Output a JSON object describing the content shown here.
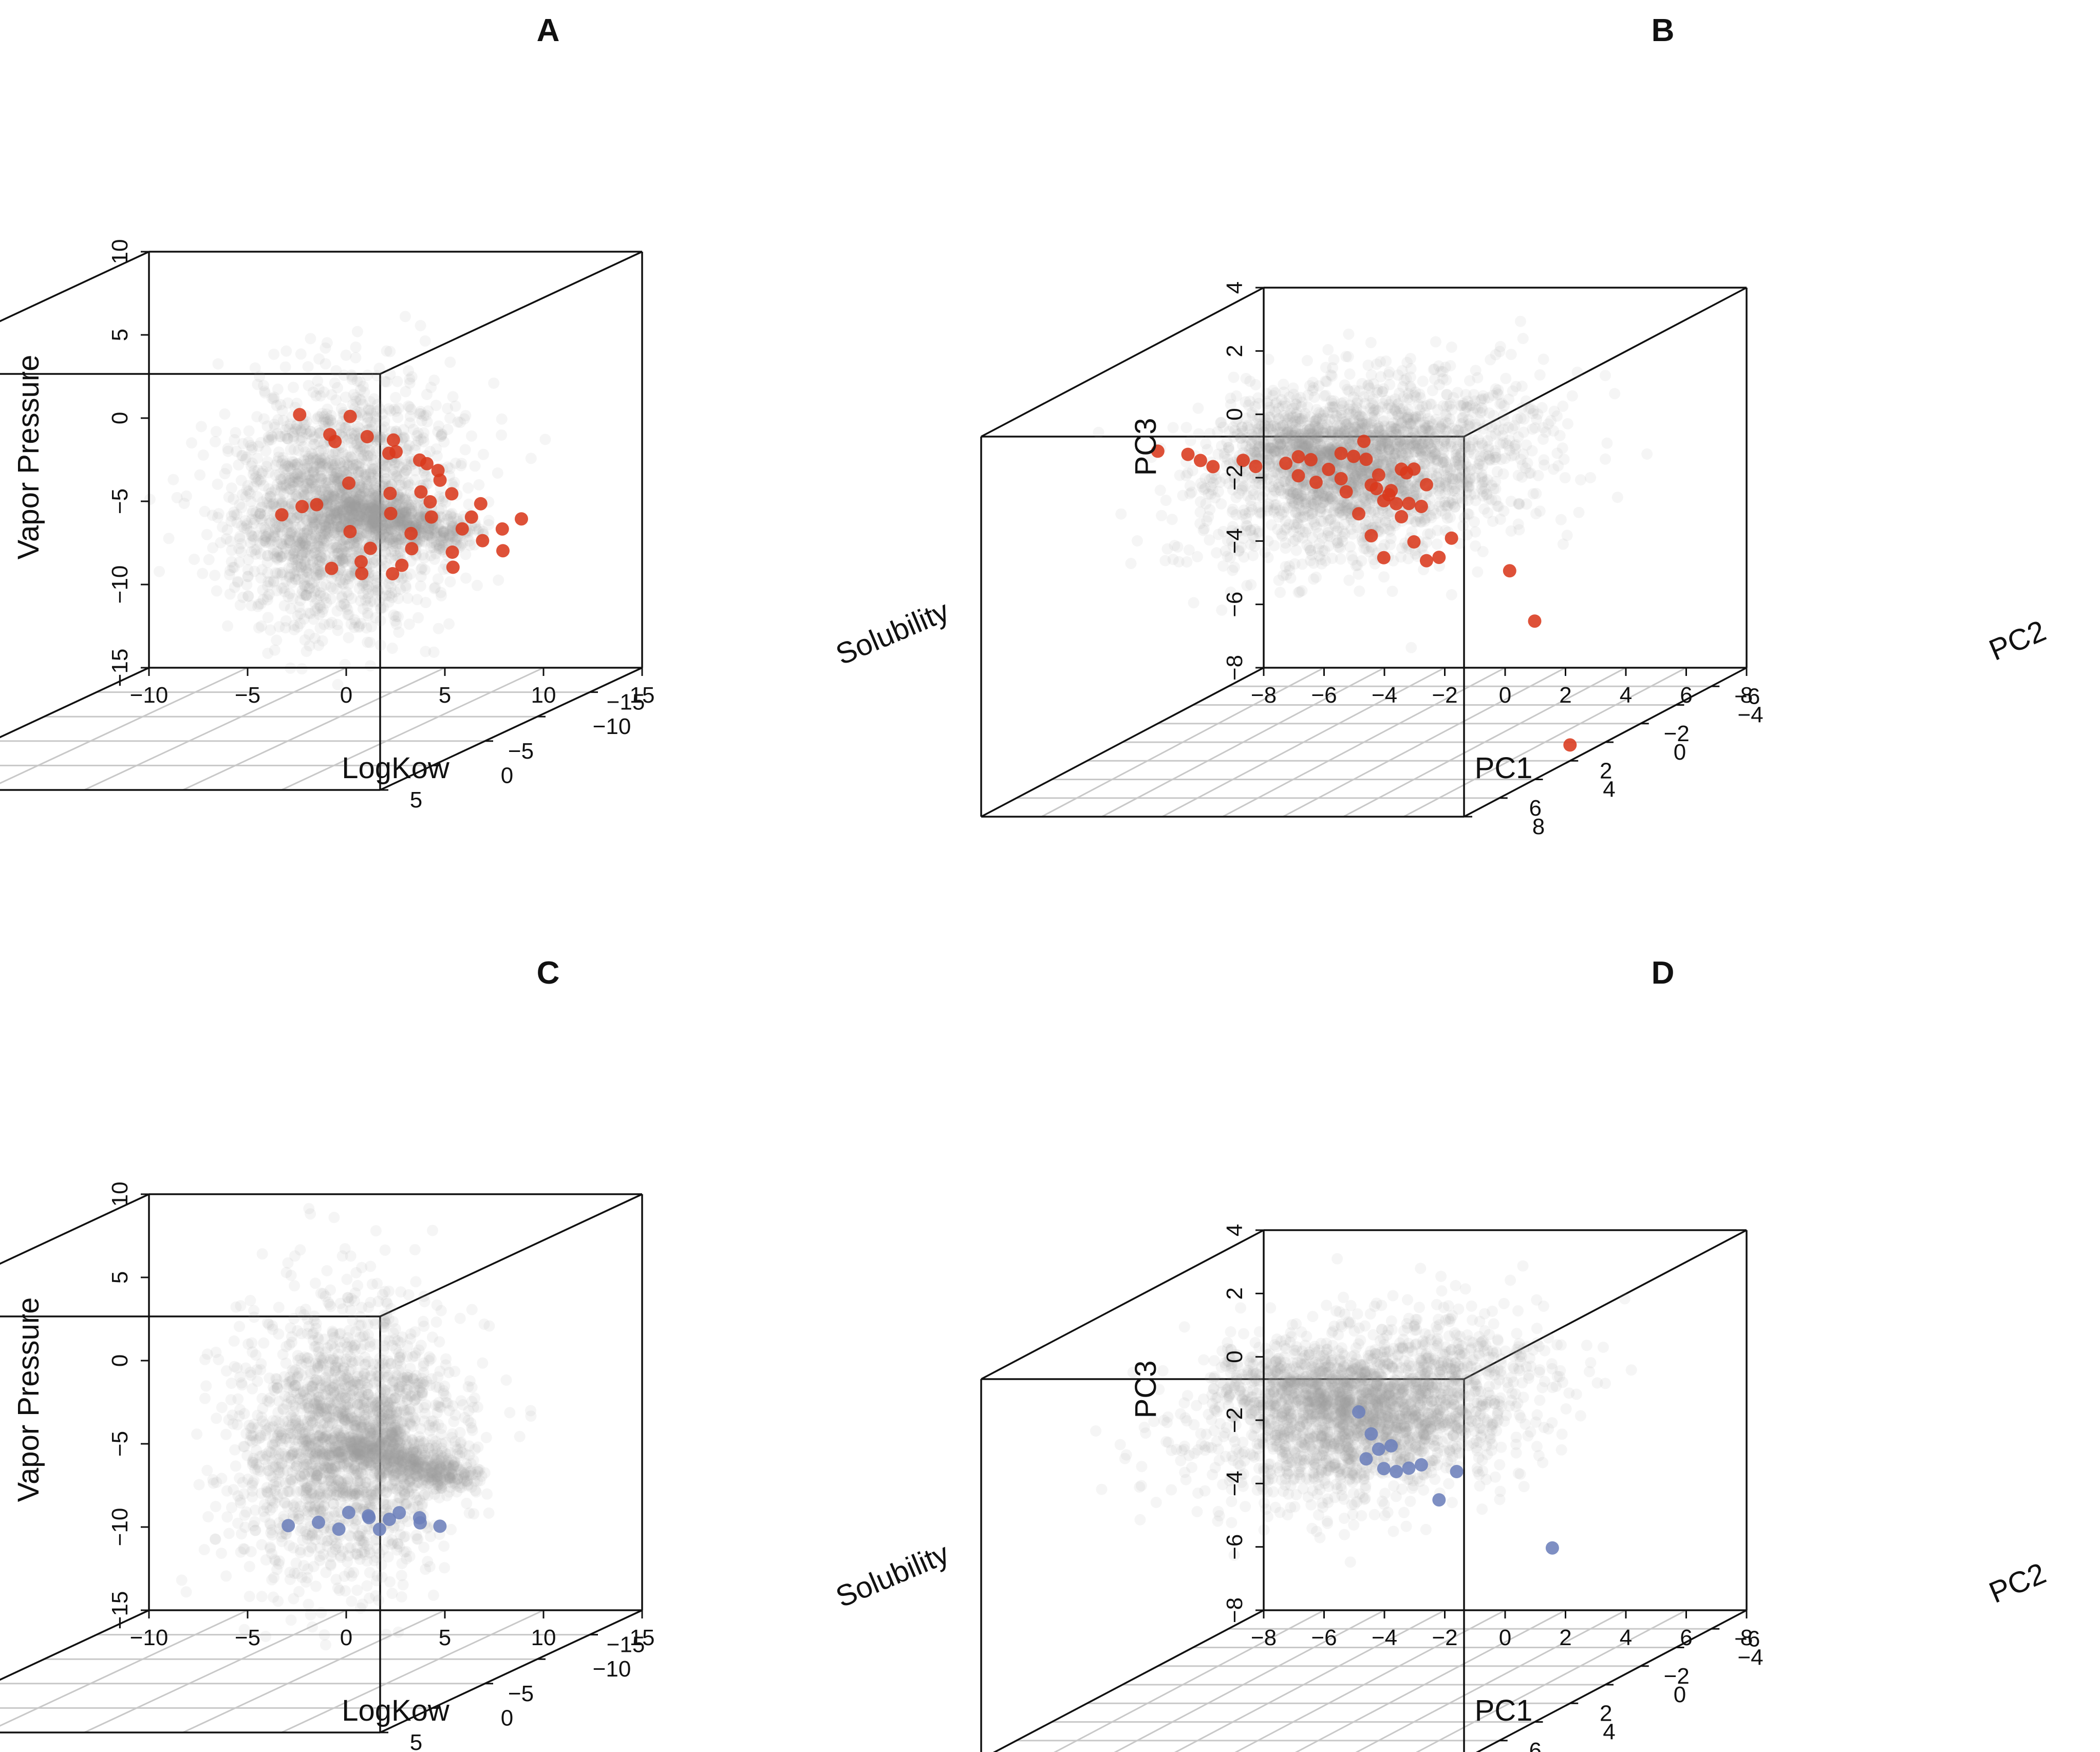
{
  "figure": {
    "background": "#ffffff"
  },
  "colors": {
    "red": "#d9391c",
    "blue": "#6c7fbb",
    "cloud": "#9c9c9c",
    "grid": "#c8c8c8",
    "box": "#111111"
  },
  "chart_data": [
    {
      "id": "A",
      "type": "scatter3d",
      "title": "A",
      "xlabel": "LogKow",
      "ylabel": "Solubility",
      "zlabel": "Vapor Pressure",
      "xlim": [
        -10,
        15
      ],
      "ylim": [
        -20,
        5
      ],
      "zlim": [
        -15,
        10
      ],
      "xticks": [
        -10,
        -5,
        0,
        5,
        10,
        15
      ],
      "yticks": [
        -15,
        -10,
        -5,
        0,
        5
      ],
      "zticks": [
        -15,
        -10,
        -5,
        0,
        5,
        10
      ],
      "xtick_labels": [
        "−10",
        "−5",
        "0",
        "5",
        "10",
        "15"
      ],
      "ytick_labels": [
        "−15",
        "−10",
        "−5",
        "0",
        "5"
      ],
      "ztick_labels": [
        "−15",
        "−10",
        "−5",
        "0",
        "5",
        "10"
      ],
      "background_cloud": {
        "label": "all chemicals (grey density)",
        "center": [
          6.5,
          -7,
          -1.5
        ],
        "spread": [
          2.5,
          2.5,
          3.5
        ],
        "tail": [
          13,
          -6,
          -3
        ]
      },
      "series": [
        {
          "name": "highlighted chemicals",
          "color": "#d9391c",
          "points": [
            [
              7.2,
              -2,
              5.5
            ],
            [
              8.2,
              -3,
              4
            ],
            [
              8.5,
              -6,
              3
            ],
            [
              9.3,
              -7,
              2.5
            ],
            [
              8.9,
              -8,
              1.5
            ],
            [
              8.1,
              -5,
              0.5
            ],
            [
              7,
              -4,
              -0.5
            ],
            [
              8.6,
              -8,
              -1
            ],
            [
              9.1,
              -10,
              -1.5
            ],
            [
              10.1,
              -9,
              -1.8
            ],
            [
              9.6,
              -12,
              -2.2
            ],
            [
              8.1,
              -9,
              -2.5
            ],
            [
              7.1,
              -7,
              -3
            ],
            [
              9.1,
              -11,
              -3.3
            ],
            [
              10.6,
              -12,
              -3.6
            ],
            [
              8.6,
              -10,
              -4
            ],
            [
              7.6,
              -8,
              -4.3
            ],
            [
              9.6,
              -13,
              -4.6
            ],
            [
              11.1,
              -14,
              -4.9
            ],
            [
              8.1,
              -11,
              -5.2
            ],
            [
              6.6,
              -9,
              -5.4
            ],
            [
              10.1,
              -14,
              -5.6
            ],
            [
              9.1,
              -13,
              -6
            ],
            [
              7.6,
              -11,
              -6.2
            ],
            [
              6.1,
              -10,
              -6.4
            ],
            [
              5.1,
              -9,
              -5.8
            ],
            [
              6.6,
              -12,
              -7
            ],
            [
              8.6,
              -14,
              -7.2
            ],
            [
              10.6,
              -15,
              -6.5
            ],
            [
              12.6,
              -13,
              -4
            ],
            [
              11.6,
              -11,
              -2.5
            ],
            [
              10.6,
              -9,
              -0.5
            ],
            [
              5.2,
              -6,
              -1.2
            ],
            [
              4.7,
              -5,
              -1.4
            ],
            [
              9.6,
              -6,
              2
            ],
            [
              10.1,
              -8,
              1
            ],
            [
              8.7,
              -4,
              4.8
            ],
            [
              7.4,
              -5,
              3
            ],
            [
              9.4,
              -10,
              0.2
            ],
            [
              8.9,
              -12,
              -0.8
            ]
          ]
        }
      ]
    },
    {
      "id": "B",
      "type": "scatter3d",
      "title": "B",
      "xlabel": "PC1",
      "ylabel": "PC2",
      "zlabel": "PC3",
      "xlim": [
        -8,
        8
      ],
      "ylim": [
        -8,
        8
      ],
      "zlim": [
        -8,
        4
      ],
      "xticks": [
        -8,
        -6,
        -4,
        -2,
        0,
        2,
        4,
        6,
        8
      ],
      "yticks": [
        -6,
        -4,
        -2,
        0,
        2,
        4,
        6,
        8
      ],
      "zticks": [
        -8,
        -6,
        -4,
        -2,
        0,
        2,
        4
      ],
      "xtick_labels": [
        "−8",
        "−6",
        "−4",
        "−2",
        "0",
        "2",
        "4",
        "6",
        "8"
      ],
      "ytick_labels": [
        "−6",
        "−4",
        "−2",
        "0",
        "2",
        "4",
        "6",
        "8"
      ],
      "ztick_labels": [
        "−8",
        "−6",
        "−4",
        "−2",
        "0",
        "2",
        "4"
      ],
      "background_cloud": {
        "label": "all chemicals (grey density)",
        "center": [
          2,
          3,
          1.5
        ],
        "spread": [
          2.2,
          2.5,
          1.2
        ],
        "tail": [
          -6,
          -4,
          0.8
        ]
      },
      "series": [
        {
          "name": "highlighted chemicals",
          "color": "#d9391c",
          "points": [
            [
              -8,
              -2,
              0.6
            ],
            [
              -7,
              -2,
              0.5
            ],
            [
              -6,
              -1,
              0.6
            ],
            [
              -5,
              0,
              0.7
            ],
            [
              -4,
              0,
              0.9
            ],
            [
              -3,
              1,
              1
            ],
            [
              -2,
              1,
              1.1
            ],
            [
              -1,
              2,
              1
            ],
            [
              0,
              2,
              1.2
            ],
            [
              1,
              3,
              1.2
            ],
            [
              2,
              3,
              1
            ],
            [
              3,
              4,
              0.8
            ],
            [
              4,
              5,
              1
            ],
            [
              5,
              6,
              1.3
            ],
            [
              5,
              5,
              1.6
            ],
            [
              4,
              4,
              1.8
            ],
            [
              3,
              3,
              1.5
            ],
            [
              2,
              2,
              0.4
            ],
            [
              3,
              3,
              0
            ],
            [
              4,
              4,
              -0.5
            ],
            [
              5,
              5,
              -0.8
            ],
            [
              3,
              4,
              -1
            ],
            [
              2,
              3,
              -0.6
            ],
            [
              1,
              2,
              -0.2
            ],
            [
              0,
              1,
              0.2
            ],
            [
              -1,
              1,
              0.5
            ],
            [
              6,
              7,
              1.5
            ],
            [
              7,
              7,
              0.5
            ],
            [
              6,
              6,
              -0.4
            ],
            [
              5,
              7,
              2
            ],
            [
              4,
              6,
              2.2
            ],
            [
              3,
              5,
              2.4
            ],
            [
              2,
              4,
              2.2
            ],
            [
              1,
              3,
              2
            ],
            [
              0,
              3,
              1.8
            ],
            [
              -1,
              2,
              1.6
            ],
            [
              2,
              1,
              0.8
            ],
            [
              1,
              1,
              0.3
            ],
            [
              0,
              0,
              1.5
            ],
            [
              8,
              4,
              -3
            ],
            [
              8,
              2,
              -7.5
            ],
            [
              6,
              2,
              -2
            ]
          ]
        }
      ]
    },
    {
      "id": "C",
      "type": "scatter3d",
      "title": "C",
      "xlabel": "LogKow",
      "ylabel": "Solubility",
      "zlabel": "Vapor Pressure",
      "xlim": [
        -10,
        15
      ],
      "ylim": [
        -20,
        5
      ],
      "zlim": [
        -15,
        10
      ],
      "xticks": [
        -10,
        -5,
        0,
        5,
        10,
        15
      ],
      "yticks": [
        -15,
        -10,
        -5,
        0,
        5
      ],
      "zticks": [
        -15,
        -10,
        -5,
        0,
        5,
        10
      ],
      "xtick_labels": [
        "−10",
        "−5",
        "0",
        "5",
        "10",
        "15"
      ],
      "ytick_labels": [
        "−15",
        "−10",
        "−5",
        "0",
        "5"
      ],
      "ztick_labels": [
        "−15",
        "−10",
        "−5",
        "0",
        "5",
        "10"
      ],
      "background_cloud": {
        "label": "all chemicals (grey density)",
        "center": [
          7,
          -7,
          -1
        ],
        "spread": [
          2.5,
          2.5,
          4
        ],
        "tail": [
          13,
          -6,
          -3
        ]
      },
      "series": [
        {
          "name": "highlighted chemicals",
          "color": "#6c7fbb",
          "points": [
            [
              4.5,
              -6,
              -5.8
            ],
            [
              5.5,
              -7,
              -5.9
            ],
            [
              6.5,
              -8,
              -5.6
            ],
            [
              7,
              -9,
              -6.2
            ],
            [
              7.5,
              -10,
              -6.6
            ],
            [
              8,
              -10,
              -6.2
            ],
            [
              8.5,
              -11,
              -6.8
            ],
            [
              7,
              -10,
              -7.2
            ],
            [
              8,
              -12,
              -7.4
            ],
            [
              9,
              -12,
              -7.6
            ],
            [
              6,
              -8,
              -6.6
            ],
            [
              7.5,
              -8,
              -5.8
            ]
          ]
        }
      ]
    },
    {
      "id": "D",
      "type": "scatter3d",
      "title": "D",
      "xlabel": "PC1",
      "ylabel": "PC2",
      "zlabel": "PC3",
      "xlim": [
        -8,
        8
      ],
      "ylim": [
        -8,
        8
      ],
      "zlim": [
        -8,
        4
      ],
      "xticks": [
        -8,
        -6,
        -4,
        -2,
        0,
        2,
        4,
        6,
        8
      ],
      "yticks": [
        -6,
        -4,
        -2,
        0,
        2,
        4,
        6,
        8
      ],
      "zticks": [
        -8,
        -6,
        -4,
        -2,
        0,
        2,
        4
      ],
      "xtick_labels": [
        "−8",
        "−6",
        "−4",
        "−2",
        "0",
        "2",
        "4",
        "6",
        "8"
      ],
      "ytick_labels": [
        "−6",
        "−4",
        "−2",
        "0",
        "2",
        "4",
        "6",
        "8"
      ],
      "ztick_labels": [
        "−8",
        "−6",
        "−4",
        "−2",
        "0",
        "2",
        "4"
      ],
      "background_cloud": {
        "label": "all chemicals (grey density)",
        "center": [
          2,
          3,
          1.5
        ],
        "spread": [
          2.2,
          2.5,
          1.2
        ],
        "tail": [
          -6,
          -4,
          0.8
        ]
      },
      "series": [
        {
          "name": "highlighted chemicals",
          "color": "#6c7fbb",
          "points": [
            [
              4,
              6,
              1.2
            ],
            [
              5,
              6,
              0.6
            ],
            [
              6,
              7,
              1
            ],
            [
              5,
              7,
              1.6
            ],
            [
              4,
              5,
              0.2
            ],
            [
              3,
              5,
              0.6
            ],
            [
              3,
              4,
              0
            ],
            [
              2,
              3,
              0.8
            ],
            [
              1,
              2,
              1.2
            ],
            [
              6,
              6,
              -0.4
            ],
            [
              6,
              5,
              0.2
            ],
            [
              8,
              3,
              -2.8
            ]
          ]
        }
      ]
    }
  ]
}
